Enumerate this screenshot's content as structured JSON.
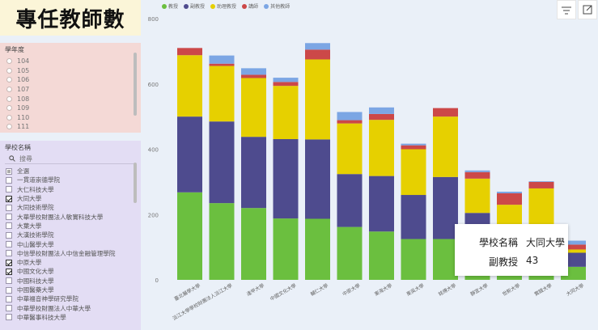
{
  "page_title": "專任教師數",
  "year_filter": {
    "header": "學年度",
    "items": [
      "104",
      "105",
      "106",
      "107",
      "108",
      "109",
      "110",
      "111"
    ]
  },
  "school_filter": {
    "header": "學校名稱",
    "search_placeholder": "搜尋",
    "items": [
      {
        "label": "全選",
        "state": "partial"
      },
      {
        "label": "一貫道崇德學院",
        "state": "unchecked"
      },
      {
        "label": "大仁科技大學",
        "state": "unchecked"
      },
      {
        "label": "大同大學",
        "state": "checked"
      },
      {
        "label": "大同技術學院",
        "state": "unchecked"
      },
      {
        "label": "大華學校財團法人敏實科技大學",
        "state": "unchecked"
      },
      {
        "label": "大葉大學",
        "state": "unchecked"
      },
      {
        "label": "大漢技術學院",
        "state": "unchecked"
      },
      {
        "label": "中山醫學大學",
        "state": "unchecked"
      },
      {
        "label": "中信學校財團法人中信金融管理學院",
        "state": "unchecked"
      },
      {
        "label": "中原大學",
        "state": "checked"
      },
      {
        "label": "中國文化大學",
        "state": "checked"
      },
      {
        "label": "中國科技大學",
        "state": "unchecked"
      },
      {
        "label": "中國醫藥大學",
        "state": "unchecked"
      },
      {
        "label": "中華福音神學研究學院",
        "state": "unchecked"
      },
      {
        "label": "中華學校財團法人中華大學",
        "state": "unchecked"
      },
      {
        "label": "中華醫事科技大學",
        "state": "unchecked"
      }
    ]
  },
  "legend": [
    {
      "label": "教授",
      "color": "#6bbf3f"
    },
    {
      "label": "副教授",
      "color": "#4e4b8e"
    },
    {
      "label": "助理教授",
      "color": "#e6d000"
    },
    {
      "label": "講師",
      "color": "#cc4848"
    },
    {
      "label": "其他教師",
      "color": "#7ca6e4"
    }
  ],
  "toolbar": {
    "filter_icon": "filter-icon",
    "expand_icon": "expand-icon"
  },
  "tooltip": {
    "key1": "學校名稱",
    "val1": "大同大學",
    "key2": "副教授",
    "val2": "43"
  },
  "chart_data": {
    "type": "bar",
    "stacked": true,
    "ylim": [
      0,
      800
    ],
    "yticks": [
      "0",
      "200",
      "400",
      "600",
      "800"
    ],
    "grid": false,
    "legend_position": "top-left",
    "categories": [
      "臺北醫學大學",
      "淡江大學學校財團法人淡江大學",
      "逢甲大學",
      "中國文化大學",
      "輔仁大學",
      "中原大學",
      "東海大學",
      "東吳大學",
      "銘傳大學",
      "靜宜大學",
      "世新大學",
      "實踐大學",
      "大同大學"
    ],
    "series": [
      {
        "name": "教授",
        "color": "#6bbf3f",
        "values": [
          268,
          235,
          220,
          188,
          187,
          162,
          148,
          125,
          125,
          80,
          60,
          58,
          40
        ]
      },
      {
        "name": "副教授",
        "color": "#4e4b8e",
        "values": [
          232,
          250,
          218,
          243,
          243,
          162,
          170,
          135,
          190,
          125,
          100,
          112,
          43
        ]
      },
      {
        "name": "助理教授",
        "color": "#e6d000",
        "values": [
          188,
          170,
          180,
          163,
          245,
          155,
          172,
          140,
          185,
          105,
          70,
          110,
          10
        ]
      },
      {
        "name": "講師",
        "color": "#cc4848",
        "values": [
          22,
          7,
          10,
          12,
          30,
          10,
          18,
          12,
          26,
          20,
          35,
          20,
          15
        ]
      },
      {
        "name": "其他教師",
        "color": "#7ca6e4",
        "values": [
          0,
          25,
          20,
          13,
          20,
          25,
          20,
          5,
          0,
          5,
          5,
          2,
          12
        ]
      }
    ]
  }
}
